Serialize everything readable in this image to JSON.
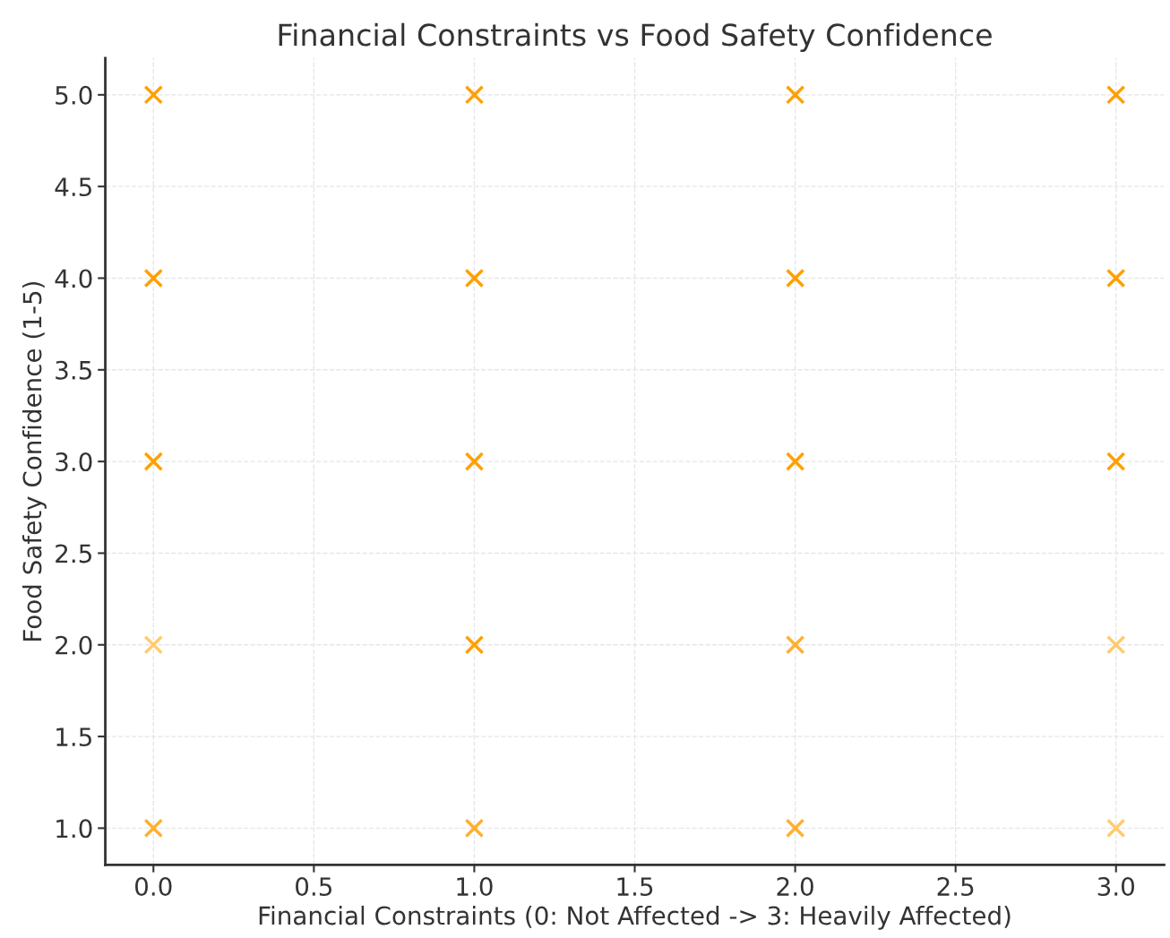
{
  "chart_data": {
    "type": "scatter",
    "title": "Financial Constraints vs Food Safety Confidence",
    "xlabel": "Financial Constraints (0: Not Affected -> 3: Heavily Affected)",
    "ylabel": "Food Safety Confidence (1-5)",
    "x": [
      0,
      0,
      0,
      0,
      0,
      1,
      1,
      1,
      1,
      1,
      2,
      2,
      2,
      2,
      2,
      3,
      3,
      3,
      3,
      3
    ],
    "values": [
      5,
      4,
      3,
      2,
      1,
      5,
      4,
      3,
      2,
      1,
      5,
      4,
      3,
      2,
      1,
      5,
      4,
      3,
      2,
      1
    ],
    "colors": [
      "#ffa000",
      "#ffa000",
      "#ffa000",
      "#ffcc70",
      "#ffb030",
      "#ffa000",
      "#ffa000",
      "#ffa000",
      "#ffa000",
      "#ffb030",
      "#ffa000",
      "#ffa000",
      "#ffa000",
      "#ffb030",
      "#ffb030",
      "#ffa000",
      "#ffa000",
      "#ffa000",
      "#ffcc70",
      "#ffcc70"
    ],
    "marker": "cross",
    "grid": true,
    "xlim": [
      -0.15,
      3.15
    ],
    "xticks": [
      {
        "value": 0,
        "label": "0.0"
      },
      0.5,
      {
        "value": 1,
        "label": "1.0"
      },
      1.5,
      {
        "value": 2,
        "label": "2.0"
      },
      2.5,
      {
        "value": 3,
        "label": "3.0"
      }
    ],
    "ylim": [
      0.8,
      5.2
    ],
    "yticks": [
      {
        "value": 1,
        "label": "1.0"
      },
      1.5,
      {
        "value": 2,
        "label": "2.0"
      },
      2.5,
      {
        "value": 3,
        "label": "3.0"
      },
      3.5,
      {
        "value": 4,
        "label": "4.0"
      },
      4.5,
      {
        "value": 5,
        "label": "5.0"
      }
    ]
  }
}
